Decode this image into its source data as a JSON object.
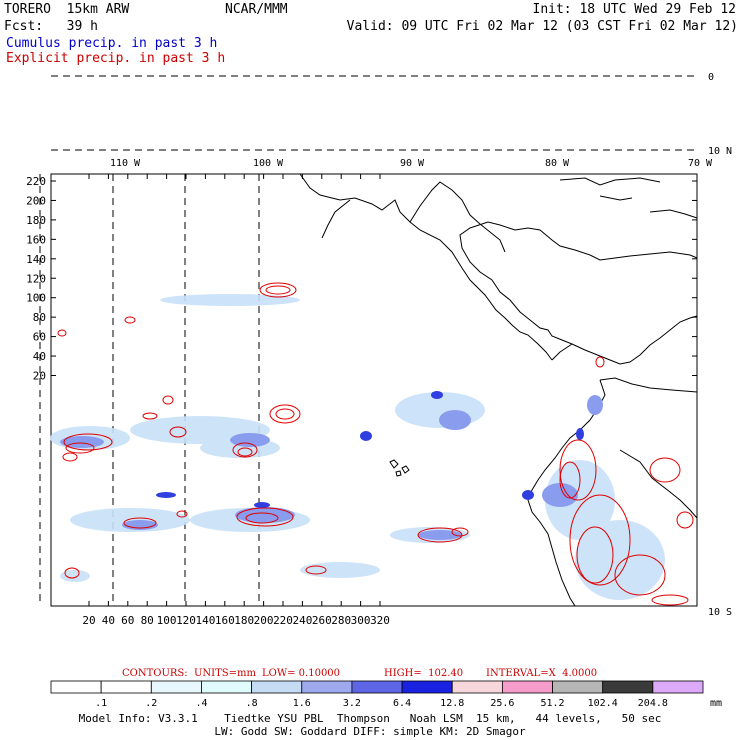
{
  "header": {
    "model": "TORERO  15km ARW",
    "org": "NCAR/MMM",
    "init": "Init: 18 UTC Wed 29 Feb 12",
    "fcst": "Fcst:   39 h",
    "valid": "Valid: 09 UTC Fri 02 Mar 12 (03 CST Fri 02 Mar 12)",
    "field1": "Cumulus precip. in past 3 h",
    "field2": "Explicit precip. in past 3 h"
  },
  "top_lon_labels": [
    "110 W",
    "100 W",
    "90 W",
    "80 W",
    "70 W"
  ],
  "right_lat_labels": [
    "10 N",
    "0",
    "10 S"
  ],
  "y_ticks": [
    "220",
    "200",
    "180",
    "160",
    "140",
    "120",
    "100",
    "80",
    "60",
    "40",
    "20"
  ],
  "x_ticks": [
    "20",
    "40",
    "60",
    "80",
    "100",
    "120",
    "140",
    "160",
    "180",
    "200",
    "220",
    "240",
    "260",
    "280",
    "300",
    "320"
  ],
  "contour_info": {
    "contours": "CONTOURS:  UNITS=mm",
    "low": "LOW= 0.10000",
    "high": "HIGH=  102.40",
    "interval": "INTERVAL=X  4.0000"
  },
  "color_scale": {
    "labels": [
      ".1",
      ".2",
      ".4",
      ".8",
      "1.6",
      "3.2",
      "6.4",
      "12.8",
      "25.6",
      "51.2",
      "102.4",
      "204.8"
    ],
    "unit": "mm",
    "colors": [
      "#ffffff",
      "#ffffff",
      "#e8f6fd",
      "#e0fbfb",
      "#c6dcf5",
      "#9ea9ee",
      "#5e66e6",
      "#1a22e2",
      "#f6d8dc",
      "#f59ccb",
      "#b6b6b6",
      "#3a3a3a",
      "#ddaafa"
    ]
  },
  "footer": {
    "line1": "Model Info: V3.3.1    Tiedtke YSU PBL  Thompson   Noah LSM  15 km,   44 levels,   50 sec",
    "line2": "LW: Godd SW: Goddard DIFF: simple KM: 2D Smagor"
  },
  "map": {
    "grid_lon_x": [
      40,
      113,
      185,
      259
    ],
    "grid_lat_y": [
      150,
      76
    ],
    "explicit_color": "#e00000",
    "cumulus_colors": [
      "#c8e0f8",
      "#8a9cee",
      "#3040e0"
    ]
  }
}
